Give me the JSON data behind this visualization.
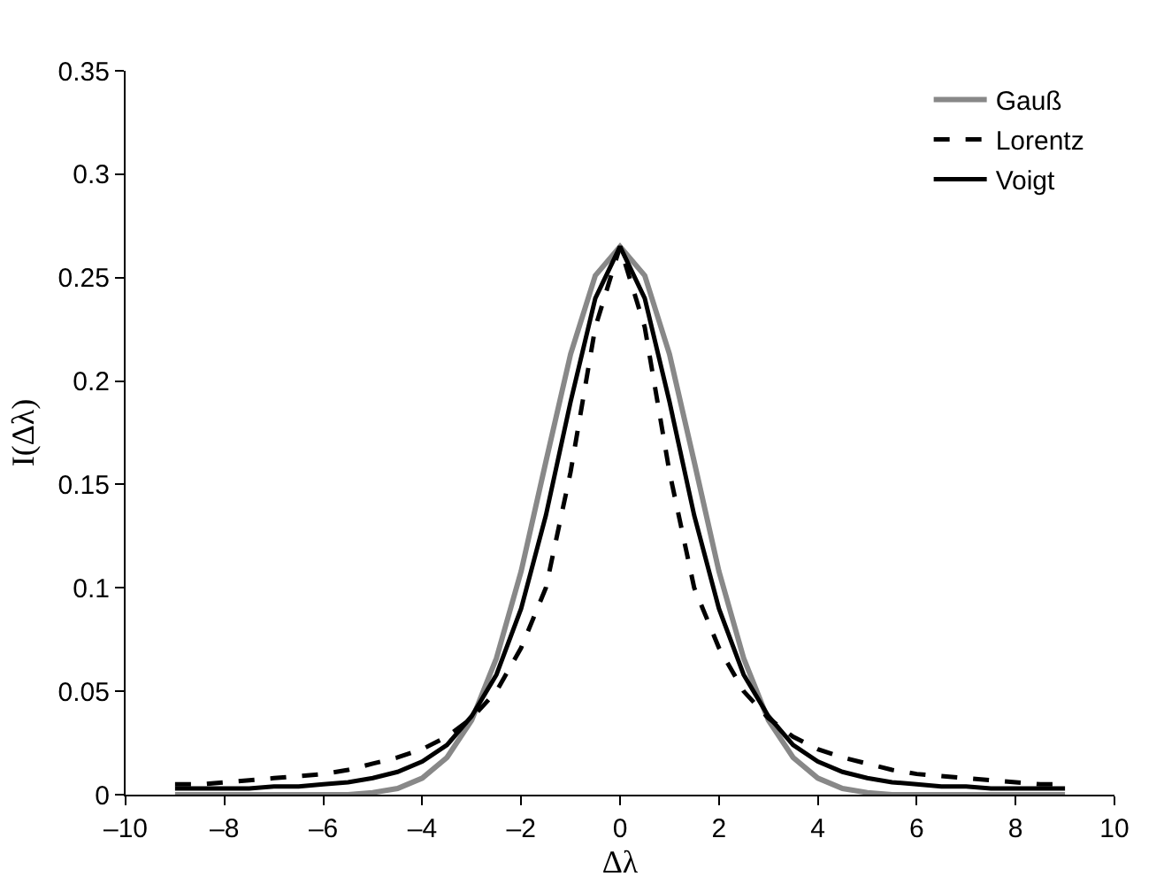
{
  "chart_data": {
    "type": "line",
    "xlabel": "Δλ",
    "ylabel": "I(Δλ)",
    "x": [
      -9,
      -8.5,
      -8,
      -7.5,
      -7,
      -6.5,
      -6,
      -5.5,
      -5,
      -4.5,
      -4,
      -3.5,
      -3,
      -2.5,
      -2,
      -1.5,
      -1,
      -0.5,
      0,
      0.5,
      1,
      1.5,
      2,
      2.5,
      3,
      3.5,
      4,
      4.5,
      5,
      5.5,
      6,
      6.5,
      7,
      7.5,
      8,
      8.5,
      9
    ],
    "series": [
      {
        "name": "Gauß",
        "color": "#888888",
        "line_style": "solid",
        "values": [
          0,
          0,
          0,
          0,
          0,
          0,
          0,
          0,
          0.001,
          0.003,
          0.008,
          0.018,
          0.036,
          0.066,
          0.108,
          0.161,
          0.213,
          0.251,
          0.265,
          0.251,
          0.213,
          0.161,
          0.108,
          0.066,
          0.036,
          0.018,
          0.008,
          0.003,
          0.001,
          0,
          0,
          0,
          0,
          0,
          0,
          0,
          0
        ]
      },
      {
        "name": "Lorentz",
        "color": "#000000",
        "line_style": "dashed",
        "values": [
          0.005,
          0.005,
          0.006,
          0.007,
          0.008,
          0.009,
          0.01,
          0.012,
          0.015,
          0.018,
          0.022,
          0.028,
          0.037,
          0.05,
          0.071,
          0.1,
          0.156,
          0.226,
          0.265,
          0.226,
          0.156,
          0.1,
          0.071,
          0.05,
          0.037,
          0.028,
          0.022,
          0.018,
          0.015,
          0.012,
          0.01,
          0.009,
          0.008,
          0.007,
          0.006,
          0.005,
          0.005
        ]
      },
      {
        "name": "Voigt",
        "color": "#000000",
        "line_style": "solid",
        "values": [
          0.003,
          0.003,
          0.003,
          0.003,
          0.004,
          0.004,
          0.005,
          0.006,
          0.008,
          0.011,
          0.016,
          0.024,
          0.038,
          0.058,
          0.09,
          0.135,
          0.19,
          0.24,
          0.265,
          0.24,
          0.19,
          0.135,
          0.09,
          0.058,
          0.038,
          0.024,
          0.016,
          0.011,
          0.008,
          0.006,
          0.005,
          0.004,
          0.004,
          0.003,
          0.003,
          0.003,
          0.003
        ]
      }
    ],
    "xlim": [
      -10,
      10
    ],
    "xticks": [
      {
        "value": -10,
        "label": "–10"
      },
      {
        "value": -8,
        "label": "–8"
      },
      {
        "value": -6,
        "label": "–6"
      },
      {
        "value": -4,
        "label": "–4"
      },
      {
        "value": -2,
        "label": "–2"
      },
      0,
      2,
      4,
      6,
      8,
      10
    ],
    "ylim": [
      0,
      0.35
    ],
    "yticks": [
      0,
      0.05,
      0.1,
      0.15,
      0.2,
      0.25,
      0.3,
      0.35
    ],
    "grid": false,
    "legend": "top right",
    "marker": "none"
  }
}
